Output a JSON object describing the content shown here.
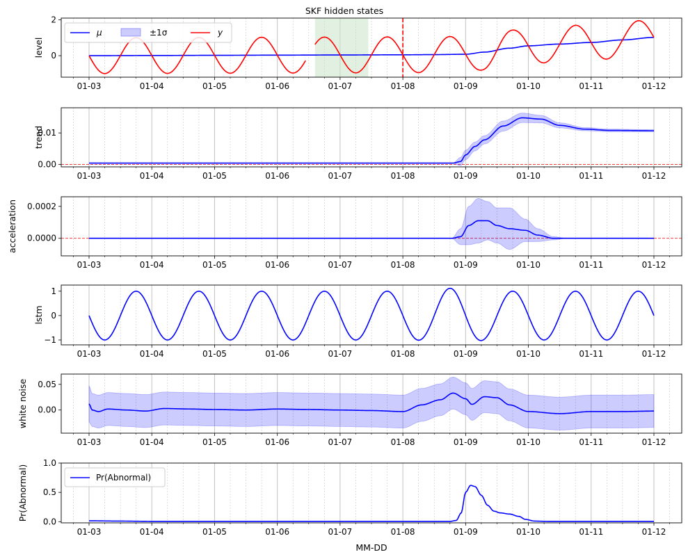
{
  "figure": {
    "title": "SKF hidden states",
    "xlabel": "MM-DD"
  },
  "colors": {
    "mean": "#0000ff",
    "band": "#0000ff",
    "observation": "#ff0000",
    "train_window": "#c8e3c8",
    "threshold_line": "#e00000",
    "grid": "#b0b0b0"
  },
  "chart_data": [
    {
      "type": "line",
      "panel": "level",
      "ylabel": "level",
      "title": "SKF hidden states",
      "x_ticks": [
        "01-03",
        "01-04",
        "01-05",
        "01-06",
        "01-07",
        "01-08",
        "01-09",
        "01-10",
        "01-11",
        "01-12"
      ],
      "ylim": [
        -1.2,
        2.1
      ],
      "yticks": [
        "2",
        "0"
      ],
      "ytick_values": [
        2,
        0
      ],
      "grid": true,
      "legend": {
        "placement": "top-left",
        "entries": [
          "μ",
          "±1σ",
          "y"
        ]
      },
      "shaded_window_days": [
        3.6,
        4.45
      ],
      "vertical_marker_day": 5.0,
      "series": [
        {
          "name": "μ",
          "role": "mean",
          "x": [
            0,
            1,
            2,
            3,
            4,
            5,
            5.5,
            6,
            6.3,
            6.7,
            7,
            7.5,
            8,
            8.5,
            9
          ],
          "values": [
            0.0,
            0.01,
            0.02,
            0.03,
            0.04,
            0.05,
            0.06,
            0.08,
            0.2,
            0.42,
            0.55,
            0.65,
            0.74,
            0.88,
            1.02
          ]
        },
        {
          "name": "y",
          "role": "observation",
          "generator": "level_plus_sine",
          "amplitude": 1.0,
          "period_days": 1.0,
          "phase_peak_days": 0.75,
          "gap_days": [
            3.45,
            3.6
          ]
        }
      ]
    },
    {
      "type": "line",
      "panel": "trend",
      "ylabel": "trend",
      "x_ticks": [
        "01-03",
        "01-04",
        "01-05",
        "01-06",
        "01-07",
        "01-08",
        "01-09",
        "01-10",
        "01-11",
        "01-12"
      ],
      "ylim": [
        -0.0008,
        0.018
      ],
      "yticks": [
        "0.01",
        "0.00"
      ],
      "ytick_values": [
        0.01,
        0
      ],
      "grid": true,
      "hline": 0,
      "series": [
        {
          "name": "μ",
          "x": [
            0,
            5.8,
            5.92,
            6.0,
            6.15,
            6.3,
            6.6,
            6.9,
            7.2,
            7.5,
            7.9,
            8.3,
            9
          ],
          "values": [
            0.0004,
            0.0004,
            0.0009,
            0.003,
            0.0057,
            0.0078,
            0.0122,
            0.0148,
            0.0144,
            0.0124,
            0.0112,
            0.0108,
            0.0107
          ],
          "sigma": [
            5e-05,
            5e-05,
            0.0013,
            0.0015,
            0.0014,
            0.0013,
            0.0016,
            0.0015,
            0.0012,
            0.0008,
            0.0005,
            0.0004,
            0.0003
          ]
        }
      ]
    },
    {
      "type": "line",
      "panel": "acceleration",
      "ylabel": "acceleration",
      "x_ticks": [
        "01-03",
        "01-04",
        "01-05",
        "01-06",
        "01-07",
        "01-08",
        "01-09",
        "01-10",
        "01-11",
        "01-12"
      ],
      "ylim": [
        -0.00011,
        0.00026
      ],
      "yticks": [
        "0.0002",
        "0.0000"
      ],
      "ytick_values": [
        0.0002,
        0
      ],
      "grid": true,
      "hline": 0,
      "series": [
        {
          "name": "μ",
          "x": [
            0,
            5.78,
            5.92,
            6.05,
            6.2,
            6.35,
            6.5,
            6.7,
            6.95,
            7.15,
            7.4,
            7.6,
            9
          ],
          "values": [
            0,
            0,
            1e-05,
            8e-05,
            0.00011,
            0.00011,
            8e-05,
            6e-05,
            5e-05,
            2e-05,
            0,
            0,
            0
          ],
          "sigma": [
            1e-06,
            1e-06,
            5e-05,
            0.00012,
            0.00014,
            0.00012,
            0.00011,
            0.00013,
            7e-05,
            4e-05,
            1e-05,
            1e-06,
            1e-06
          ]
        }
      ]
    },
    {
      "type": "line",
      "panel": "lstm",
      "ylabel": "lstm",
      "x_ticks": [
        "01-03",
        "01-04",
        "01-05",
        "01-06",
        "01-07",
        "01-08",
        "01-09",
        "01-10",
        "01-11",
        "01-12"
      ],
      "ylim": [
        -1.2,
        1.25
      ],
      "yticks": [
        "1",
        "0",
        "−1"
      ],
      "ytick_values": [
        1,
        0,
        -1
      ],
      "grid": true,
      "series": [
        {
          "name": "μ",
          "generator": "sine",
          "amplitude": 1.0,
          "period_days": 1.0,
          "phase_peak_days": 0.75,
          "bump": {
            "center_day": 5.8,
            "extra": 0.12
          }
        }
      ]
    },
    {
      "type": "line",
      "panel": "white_noise",
      "ylabel": "white noise",
      "x_ticks": [
        "01-03",
        "01-04",
        "01-05",
        "01-06",
        "01-07",
        "01-08",
        "01-09",
        "01-10",
        "01-11",
        "01-12"
      ],
      "ylim": [
        -0.045,
        0.07
      ],
      "yticks": [
        "0.05",
        "0.00"
      ],
      "ytick_values": [
        0.05,
        0
      ],
      "grid": true,
      "series": [
        {
          "name": "μ",
          "x": [
            0,
            0.05,
            0.15,
            0.3,
            0.6,
            0.9,
            1.2,
            1.6,
            2,
            2.5,
            3,
            3.5,
            4,
            4.5,
            5,
            5.3,
            5.6,
            5.8,
            6,
            6.1,
            6.3,
            6.5,
            6.7,
            7,
            7.5,
            8,
            8.5,
            9
          ],
          "values": [
            0.012,
            0.0,
            -0.003,
            0.002,
            0.0,
            -0.002,
            0.003,
            0.002,
            0.001,
            0.0,
            0.002,
            0.001,
            0.0,
            -0.001,
            -0.003,
            0.01,
            0.02,
            0.033,
            0.022,
            0.011,
            0.026,
            0.024,
            0.01,
            -0.003,
            -0.007,
            -0.003,
            -0.003,
            -0.002
          ],
          "sigma": [
            0.035,
            0.032,
            0.032,
            0.032,
            0.032,
            0.032,
            0.032,
            0.032,
            0.032,
            0.032,
            0.032,
            0.032,
            0.032,
            0.032,
            0.032,
            0.032,
            0.031,
            0.031,
            0.031,
            0.031,
            0.031,
            0.031,
            0.031,
            0.032,
            0.032,
            0.032,
            0.032,
            0.032
          ]
        }
      ]
    },
    {
      "type": "line",
      "panel": "pr_abnormal",
      "ylabel": "Pr(Abnormal)",
      "x_ticks": [
        "01-03",
        "01-04",
        "01-05",
        "01-06",
        "01-07",
        "01-08",
        "01-09",
        "01-10",
        "01-11",
        "01-12"
      ],
      "ylim": [
        -0.02,
        1.0
      ],
      "yticks": [
        "1.0",
        "0.5",
        "0.0"
      ],
      "ytick_values": [
        1,
        0.5,
        0
      ],
      "grid": true,
      "legend": {
        "placement": "top-left",
        "entries": [
          "Pr(Abnormal)"
        ]
      },
      "series": [
        {
          "name": "Pr(Abnormal)",
          "x": [
            0,
            0.5,
            1,
            5.75,
            5.85,
            5.93,
            6.0,
            6.08,
            6.15,
            6.25,
            6.35,
            6.45,
            6.55,
            6.7,
            6.85,
            6.95,
            7.1,
            7.3,
            9
          ],
          "values": [
            0.015,
            0.01,
            0.005,
            0.005,
            0.02,
            0.15,
            0.5,
            0.62,
            0.6,
            0.45,
            0.28,
            0.18,
            0.15,
            0.13,
            0.09,
            0.04,
            0.01,
            0.005,
            0.005
          ]
        }
      ]
    }
  ]
}
